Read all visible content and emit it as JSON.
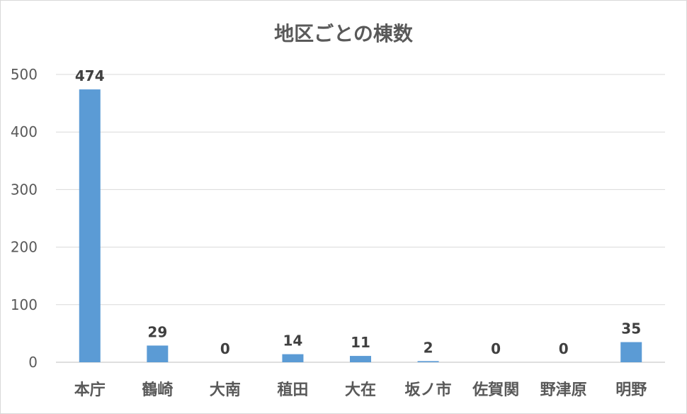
{
  "chart_data": {
    "type": "bar",
    "title": "地区ごとの棟数",
    "xlabel": "",
    "ylabel": "",
    "categories": [
      "本庁",
      "鶴崎",
      "大南",
      "稙田",
      "大在",
      "坂ノ市",
      "佐賀関",
      "野津原",
      "明野"
    ],
    "values": [
      474,
      29,
      0,
      14,
      11,
      2,
      0,
      0,
      35
    ],
    "data_labels": [
      "474",
      "29",
      "0",
      "14",
      "11",
      "2",
      "0",
      "0",
      "35"
    ],
    "yticks": [
      0,
      100,
      200,
      300,
      400,
      500
    ],
    "ytick_labels": [
      "0",
      "100",
      "200",
      "300",
      "400",
      "500"
    ],
    "ylim": [
      0,
      500
    ],
    "grid": true,
    "legend": "none",
    "bar_color": "#5B9BD5"
  }
}
